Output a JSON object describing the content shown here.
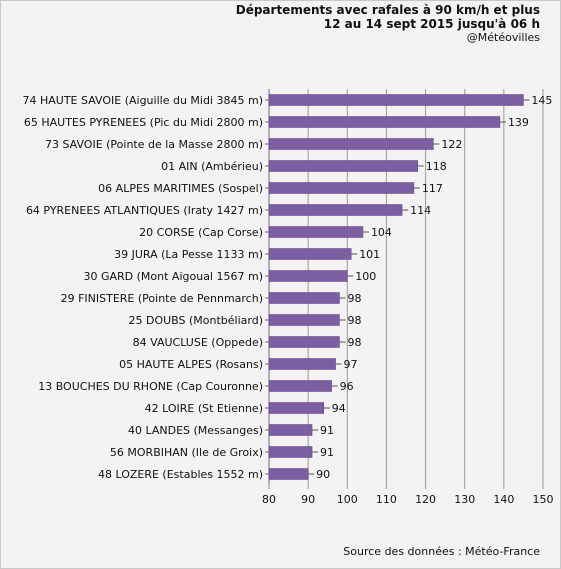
{
  "chart_data": {
    "type": "bar",
    "orientation": "horizontal",
    "title": "Départements avec rafales à 90 km/h et plus",
    "subtitle": "12 au 14 sept 2015 jusqu'à 06 h",
    "credit": "@Météovilles",
    "source": "Source des données : Météo-France",
    "categories": [
      "74 HAUTE SAVOIE (Aiguille du Midi 3845 m)",
      "65 HAUTES PYRENEES (Pic du Midi 2800 m)",
      "73 SAVOIE (Pointe de la Masse 2800 m)",
      "01 AIN (Ambérieu)",
      "06 ALPES MARITIMES (Sospel)",
      "64 PYRENEES ATLANTIQUES (Iraty 1427 m)",
      "20 CORSE (Cap Corse)",
      "39 JURA (La Pesse 1133 m)",
      "30 GARD (Mont Aigoual 1567 m)",
      "29 FINISTERE (Pointe de Pennmarch)",
      "25 DOUBS (Montbéliard)",
      "84 VAUCLUSE (Oppede)",
      "05 HAUTE ALPES (Rosans)",
      "13 BOUCHES DU RHONE (Cap Couronne)",
      "42 LOIRE (St Etienne)",
      "40 LANDES (Messanges)",
      "56 MORBIHAN (Ile de Groix)",
      "48 LOZERE (Estables 1552 m)"
    ],
    "values": [
      145,
      139,
      122,
      118,
      117,
      114,
      104,
      101,
      100,
      98,
      98,
      98,
      97,
      96,
      94,
      91,
      91,
      90
    ],
    "xlim": [
      80,
      150
    ],
    "xticks": [
      80,
      90,
      100,
      110,
      120,
      130,
      140,
      150
    ],
    "grid": true,
    "legend": "none",
    "colors": {
      "bar": "#7c5fa3",
      "bar_edge": "#5a4080",
      "grid": "#9a9a9a",
      "background": "#f3f3f3"
    }
  }
}
